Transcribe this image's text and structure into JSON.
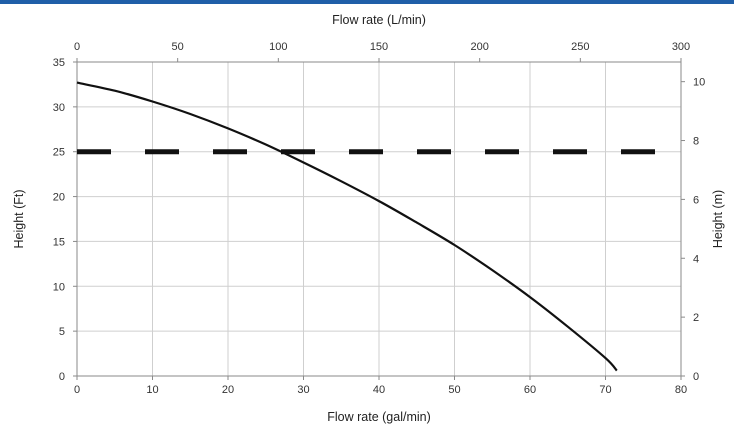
{
  "colors": {
    "top_rule": "#1f5fa8",
    "grid": "#cfcfcf",
    "axis": "#8a8a8a",
    "curve": "#111111",
    "dashed": "#111111"
  },
  "chart_data": {
    "type": "line",
    "grid": true,
    "xlabel": "Flow rate (gal/min)",
    "ylabel": "Height (Ft)",
    "xlim": [
      0,
      80
    ],
    "ylim": [
      0,
      35
    ],
    "xticks": [
      "0",
      "10",
      "20",
      "30",
      "40",
      "50",
      "60",
      "70",
      "80"
    ],
    "yticks": [
      "0",
      "5",
      "10",
      "15",
      "20",
      "25",
      "30",
      "35"
    ],
    "secondary_x": {
      "label": "Flow rate (L/min)",
      "lim": [
        0,
        300
      ],
      "ticks": [
        "0",
        "50",
        "100",
        "150",
        "200",
        "250",
        "300"
      ]
    },
    "secondary_y": {
      "label": "Height (m)",
      "lim": [
        0,
        10.668
      ],
      "ticks": [
        "0",
        "2",
        "4",
        "6",
        "8",
        "10"
      ]
    },
    "series": [
      {
        "style": "solid",
        "x": [
          0,
          5,
          10,
          15,
          20,
          25,
          30,
          35,
          40,
          45,
          50,
          55,
          60,
          65,
          70,
          71.5
        ],
        "y": [
          32.7,
          31.8,
          30.6,
          29.2,
          27.6,
          25.8,
          23.8,
          21.7,
          19.5,
          17.1,
          14.6,
          11.8,
          8.8,
          5.5,
          2.0,
          0.6
        ]
      },
      {
        "style": "dashed",
        "x": [
          0,
          77
        ],
        "y": [
          25,
          25
        ]
      }
    ]
  }
}
